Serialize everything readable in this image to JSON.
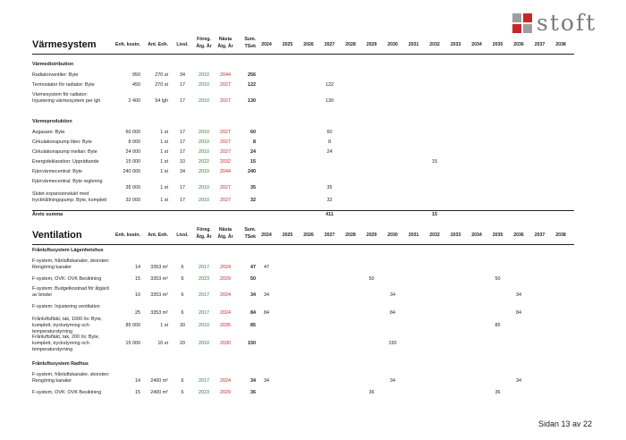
{
  "logo": {
    "text": "stoft",
    "colors": [
      "#9e9e9e",
      "#c62828",
      "#c62828",
      "#9e9e9e"
    ]
  },
  "columns": {
    "enh_kostn": "Enh. kostn.",
    "ant_enh": "Ant. Enh.",
    "livsl": "Livsl.",
    "foreg_1": "Föreg.",
    "foreg_2": "Åtg. År",
    "nasta_1": "Nästa",
    "nasta_2": "Åtg. År",
    "sum_1": "Sum.",
    "sum_2": "TSek",
    "years": [
      "2024",
      "2025",
      "2026",
      "2027",
      "2028",
      "2029",
      "2030",
      "2031",
      "2032",
      "2033",
      "2034",
      "2035",
      "2036",
      "2037",
      "2038"
    ]
  },
  "varme": {
    "title": "Värmesystem",
    "rows": [
      {
        "type": "sec",
        "desc": "Värmedistribution"
      },
      {
        "type": "item",
        "desc": "Radiatorventiler: Byte",
        "enh": "950",
        "ant": "270 st",
        "livsl": "34",
        "foreg": "2010",
        "nasta": "2044",
        "sum": "256",
        "years": {}
      },
      {
        "type": "item",
        "desc": "Termostater för radiator: Byte",
        "enh": "450",
        "ant": "270 st",
        "livsl": "17",
        "foreg": "2010",
        "nasta": "2027",
        "sum": "122",
        "years": {
          "2027": "122"
        }
      },
      {
        "type": "item",
        "desc": "Värmesystem för radiator: Injustering värmesystem per lgh",
        "enh": "2 400",
        "ant": "54 lgh",
        "livsl": "17",
        "foreg": "2010",
        "nasta": "2027",
        "sum": "130",
        "years": {
          "2027": "130"
        }
      },
      {
        "type": "sec",
        "desc": "Värmeproduktion"
      },
      {
        "type": "item",
        "desc": "Avgasare: Byte",
        "enh": "60 000",
        "ant": "1 st",
        "livsl": "17",
        "foreg": "2010",
        "nasta": "2027",
        "sum": "60",
        "years": {
          "2027": "60"
        }
      },
      {
        "type": "item",
        "desc": "Cirkulationspump liten: Byte",
        "enh": "8 000",
        "ant": "1 st",
        "livsl": "17",
        "foreg": "2010",
        "nasta": "2027",
        "sum": "8",
        "years": {
          "2027": "8"
        }
      },
      {
        "type": "item",
        "desc": "Cirkulationspump mellan: Byte",
        "enh": "24 000",
        "ant": "1 st",
        "livsl": "17",
        "foreg": "2010",
        "nasta": "2027",
        "sum": "24",
        "years": {
          "2027": "24"
        }
      },
      {
        "type": "item",
        "desc": "Energideklaration: Upprättande",
        "enh": "15 000",
        "ant": "1 st",
        "livsl": "10",
        "foreg": "2022",
        "nasta": "2032",
        "sum": "15",
        "years": {
          "2032": "15"
        }
      },
      {
        "type": "item",
        "desc": "Fjärrvärmecentral: Byte",
        "enh": "240 000",
        "ant": "1 st",
        "livsl": "34",
        "foreg": "2010",
        "nasta": "2044",
        "sum": "240",
        "years": {}
      },
      {
        "type": "item",
        "desc": "Fjärrvärmecentral: Byte reglering",
        "enh": "35 000",
        "ant": "1 st",
        "livsl": "17",
        "foreg": "2010",
        "nasta": "2027",
        "sum": "35",
        "years": {
          "2027": "35"
        }
      },
      {
        "type": "item",
        "desc": "Slutet expansionskärl med tryckhållningspump: Byte, komplett",
        "enh": "32 000",
        "ant": "1 st",
        "livsl": "17",
        "foreg": "2010",
        "nasta": "2027",
        "sum": "32",
        "years": {
          "2027": "32"
        }
      }
    ],
    "total": {
      "label": "Årets summa",
      "years": {
        "2027": "411",
        "2032": "15"
      }
    }
  },
  "vent": {
    "title": "Ventilation",
    "rows": [
      {
        "type": "sec",
        "desc": "Frånluftssystem Lägenhetshus"
      },
      {
        "type": "item",
        "desc": "F-system, frånluftskanaler, skorsten: Rengöring kanaler",
        "enh": "14",
        "ant": "3353 m²",
        "livsl": "6",
        "foreg": "2017",
        "nasta": "2024",
        "sum": "47",
        "years": {
          "2024": "47"
        }
      },
      {
        "type": "item",
        "desc": "F-system, OVK: OVK Besiktning",
        "enh": "15",
        "ant": "3353 m²",
        "livsl": "6",
        "foreg": "2023",
        "nasta": "2029",
        "sum": "50",
        "years": {
          "2029": "50",
          "2035": "50"
        }
      },
      {
        "type": "item",
        "desc": "F-system: Budgetkostnad för åtgärd av brister",
        "enh": "10",
        "ant": "3353 m²",
        "livsl": "6",
        "foreg": "2017",
        "nasta": "2024",
        "sum": "34",
        "years": {
          "2024": "34",
          "2030": "34",
          "2036": "34"
        }
      },
      {
        "type": "item",
        "desc": "F-system: Injustering ventilation",
        "enh": "25",
        "ant": "3353 m²",
        "livsl": "6",
        "foreg": "2017",
        "nasta": "2024",
        "sum": "84",
        "years": {
          "2024": "84",
          "2030": "84",
          "2036": "84"
        }
      },
      {
        "type": "item",
        "desc": "Frånluftsfläkt, tak, 1000 l/s: Byte, komplett, tryckstyrning och temperaturstyrning",
        "enh": "85 000",
        "ant": "1 st",
        "livsl": "30",
        "foreg": "2010",
        "nasta": "2035",
        "sum": "85",
        "years": {
          "2035": "85"
        }
      },
      {
        "type": "item",
        "desc": "Frånluftsfläkt, tak, 200 l/s: Byte, komplett, tryckstyrning och temperaturstyrning",
        "enh": "15 000",
        "ant": "10 st",
        "livsl": "20",
        "foreg": "2010",
        "nasta": "2030",
        "sum": "150",
        "years": {
          "2030": "150"
        }
      },
      {
        "type": "sec",
        "desc": "Frånluftssystem Radhus"
      },
      {
        "type": "item",
        "desc": "F-system, frånluftskanaler, skorsten: Rengöring kanaler",
        "enh": "14",
        "ant": "2400 m²",
        "livsl": "6",
        "foreg": "2017",
        "nasta": "2024",
        "sum": "34",
        "years": {
          "2024": "34",
          "2030": "34",
          "2036": "34"
        }
      },
      {
        "type": "item",
        "desc": "F-system, OVK: OVK Besiktning",
        "enh": "15",
        "ant": "2400 m²",
        "livsl": "6",
        "foreg": "2023",
        "nasta": "2029",
        "sum": "36",
        "years": {
          "2029": "36",
          "2035": "36"
        }
      }
    ]
  },
  "footer": {
    "page": "Sidan 13 av 22"
  }
}
